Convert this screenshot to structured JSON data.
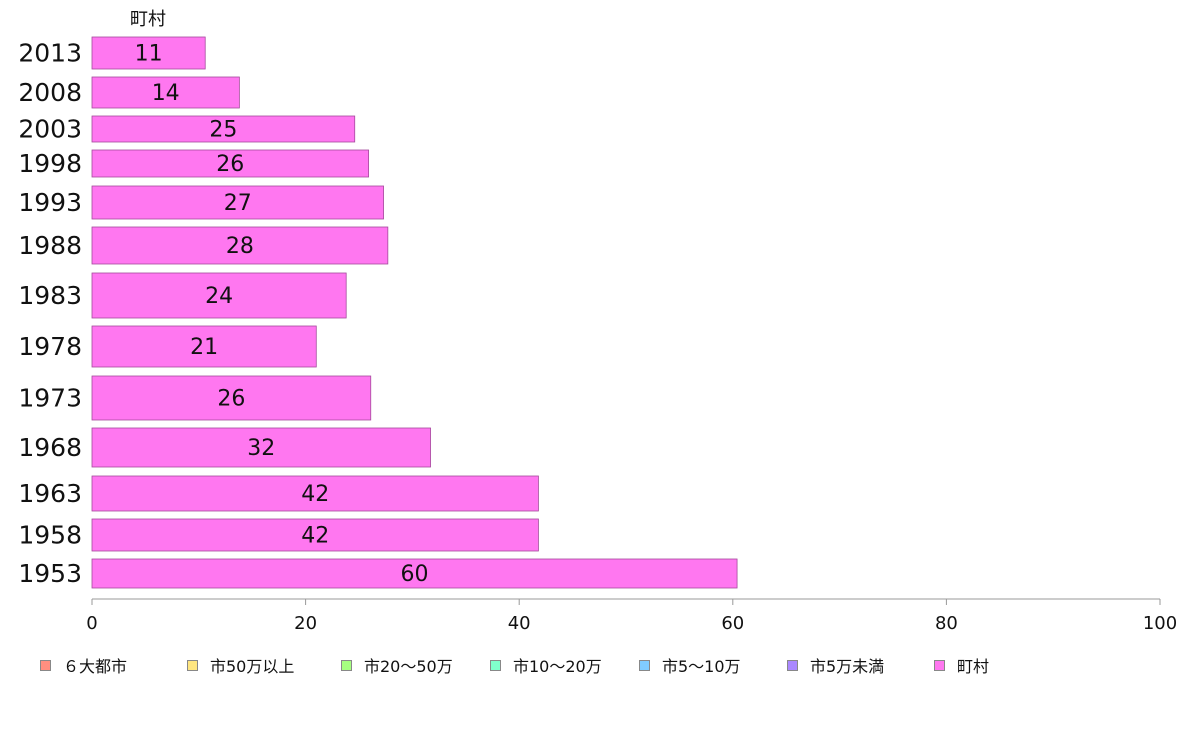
{
  "chart_data": {
    "type": "bar",
    "orientation": "horizontal",
    "categories": [
      "2013",
      "2008",
      "2003",
      "1998",
      "1993",
      "1988",
      "1983",
      "1978",
      "1973",
      "1968",
      "1963",
      "1958",
      "1953"
    ],
    "series": [
      {
        "name": "町村",
        "color": "#ff77f0",
        "values": [
          11,
          14,
          25,
          26,
          27,
          28,
          24,
          21,
          26,
          32,
          42,
          42,
          60
        ],
        "lengths": [
          10.6,
          13.8,
          24.6,
          25.9,
          27.3,
          27.7,
          23.8,
          21.0,
          26.1,
          31.7,
          41.8,
          41.8,
          60.4
        ]
      }
    ],
    "series_title": "町村",
    "xlim": [
      0,
      100
    ],
    "xticks": [
      "0",
      "20",
      "40",
      "60",
      "80",
      "100"
    ],
    "grid": false,
    "legend_position": "bottom",
    "legend": [
      {
        "label": "６大都市",
        "color": "#ff8f80"
      },
      {
        "label": "市50万以上",
        "color": "#ffe680"
      },
      {
        "label": "市20〜50万",
        "color": "#a6ff80"
      },
      {
        "label": "市10〜20万",
        "color": "#80ffcc"
      },
      {
        "label": "市5〜10万",
        "color": "#80ccff"
      },
      {
        "label": "市5万未満",
        "color": "#aa88ff"
      },
      {
        "label": "町村",
        "color": "#ff77f0"
      }
    ]
  }
}
